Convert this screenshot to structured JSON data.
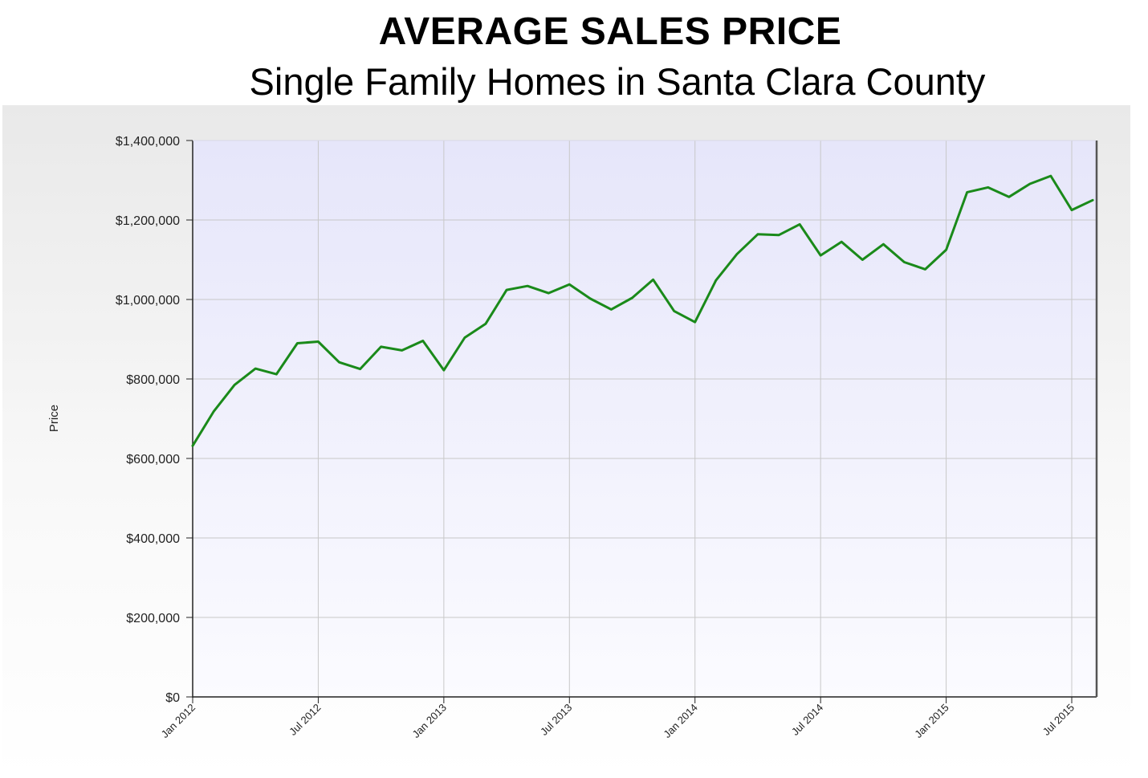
{
  "header": {
    "title": "AVERAGE SALES PRICE",
    "subtitle": "Single Family Homes in Santa Clara County"
  },
  "chart_data": {
    "type": "line",
    "title": "AVERAGE SALES PRICE",
    "subtitle": "Single Family Homes in Santa Clara County",
    "xlabel": "",
    "ylabel": "Price",
    "ylim": [
      0,
      1400000
    ],
    "yticks": [
      0,
      200000,
      400000,
      600000,
      800000,
      1000000,
      1200000,
      1400000
    ],
    "ytick_labels": [
      "$0",
      "$200,000",
      "$400,000",
      "$600,000",
      "$800,000",
      "$1,000,000",
      "$1,200,000",
      "$1,400,000"
    ],
    "xtick_labels": [
      "Jan 2012",
      "Jul 2012",
      "Jan 2013",
      "Jul 2013",
      "Jan 2014",
      "Jul 2014",
      "Jan 2015",
      "Jul 2015"
    ],
    "grid": true,
    "line_color": "#1a8a1a",
    "x": [
      "Jan 2012",
      "Feb 2012",
      "Mar 2012",
      "Apr 2012",
      "May 2012",
      "Jun 2012",
      "Jul 2012",
      "Aug 2012",
      "Sep 2012",
      "Oct 2012",
      "Nov 2012",
      "Dec 2012",
      "Jan 2013",
      "Feb 2013",
      "Mar 2013",
      "Apr 2013",
      "May 2013",
      "Jun 2013",
      "Jul 2013",
      "Aug 2013",
      "Sep 2013",
      "Oct 2013",
      "Nov 2013",
      "Dec 2013",
      "Jan 2014",
      "Feb 2014",
      "Mar 2014",
      "Apr 2014",
      "May 2014",
      "Jun 2014",
      "Jul 2014",
      "Aug 2014",
      "Sep 2014",
      "Oct 2014",
      "Nov 2014",
      "Dec 2014",
      "Jan 2015",
      "Feb 2015",
      "Mar 2015",
      "Apr 2015",
      "May 2015",
      "Jun 2015",
      "Jul 2015",
      "Aug 2015"
    ],
    "series": [
      {
        "values": [
          632000,
          718000,
          785000,
          826000,
          812000,
          890000,
          894000,
          842000,
          825000,
          881000,
          872000,
          896000,
          822000,
          904000,
          939000,
          1024000,
          1034000,
          1016000,
          1038000,
          1002000,
          975000,
          1004000,
          1050000,
          971000,
          943000,
          1048000,
          1114000,
          1164000,
          1162000,
          1189000,
          1111000,
          1145000,
          1100000,
          1139000,
          1094000,
          1076000,
          1125000,
          1270000,
          1282000,
          1258000,
          1291000,
          1311000,
          1225000,
          1250000
        ]
      }
    ]
  }
}
